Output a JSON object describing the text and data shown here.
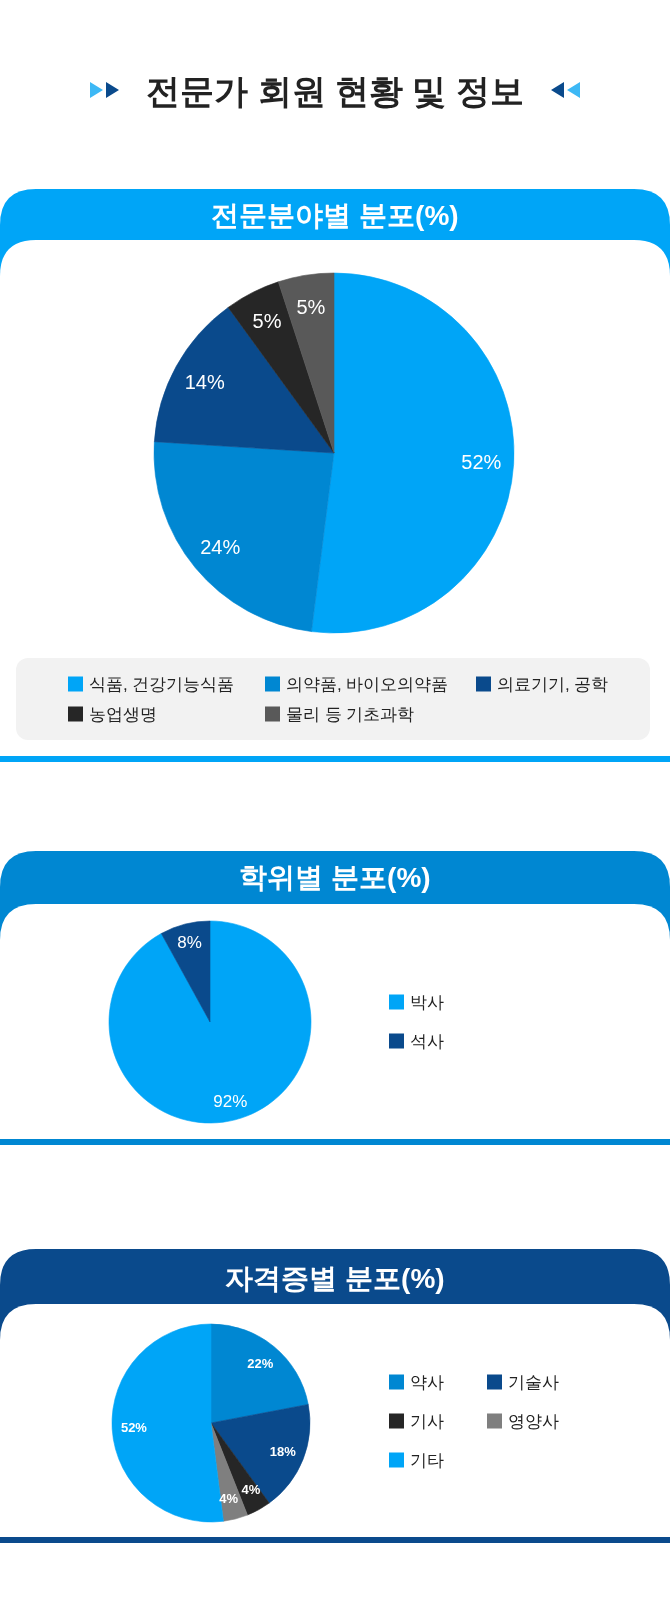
{
  "chart_data": [
    {
      "type": "pie",
      "title": "전문가 회원 현황 및 정보",
      "subtitle": "전문분야별 분포(%)",
      "categories": [
        "식품, 건강기능식품",
        "의약품, 바이오의약품",
        "의료기기, 공학",
        "농업생명",
        "물리 등 기초과학"
      ],
      "values": [
        52,
        24,
        14,
        5,
        5
      ],
      "colors": [
        "#00a5f7",
        "#0087d2",
        "#0a4a8c",
        "#262626",
        "#595959"
      ],
      "value_labels": [
        "52%",
        "24%",
        "14%",
        "5%",
        "5%"
      ],
      "legend": "bottom"
    },
    {
      "type": "pie",
      "title": "학위별 분포(%)",
      "categories": [
        "박사",
        "석사"
      ],
      "values": [
        92,
        8
      ],
      "colors": [
        "#00a5f7",
        "#0a4a8c"
      ],
      "value_labels": [
        "92%",
        "8%"
      ],
      "legend": "right"
    },
    {
      "type": "pie",
      "title": "자격증별 분포(%)",
      "categories": [
        "약사",
        "기술사",
        "기사",
        "영양사",
        "기타"
      ],
      "values": [
        22,
        18,
        4,
        4,
        52
      ],
      "colors": [
        "#0087d2",
        "#0a4a8c",
        "#262626",
        "#7f7f7f",
        "#00a5f7"
      ],
      "value_labels": [
        "22%",
        "18%",
        "4%",
        "4%",
        "52%"
      ],
      "legend": "right"
    }
  ]
}
